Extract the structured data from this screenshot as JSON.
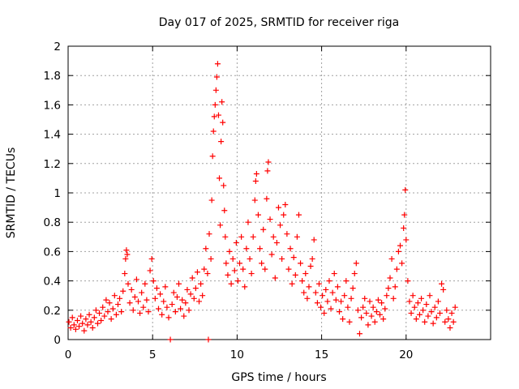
{
  "chart_data": {
    "type": "scatter",
    "title": "Day 017 of 2025, SRMTID for receiver riga",
    "xlabel": "GPS time / hours",
    "ylabel": "SRMTID / TECUs",
    "xlim": [
      0,
      25
    ],
    "ylim": [
      0,
      2
    ],
    "xticks": [
      0,
      5,
      10,
      15,
      20
    ],
    "xtick_labels": [
      "0",
      "5",
      "10",
      "15",
      "20"
    ],
    "yticks": [
      0,
      0.2,
      0.4,
      0.6,
      0.8,
      1,
      1.2,
      1.4,
      1.6,
      1.8,
      2
    ],
    "ytick_labels": [
      "0",
      "0.2",
      "0.4",
      "0.6",
      "0.8",
      "1",
      "1.2",
      "1.4",
      "1.6",
      "1.8",
      "2"
    ],
    "grid": true,
    "marker": "+",
    "series": [
      {
        "name": "SRMTID",
        "color": "#ff0000",
        "points": [
          [
            0.05,
            0.12
          ],
          [
            0.15,
            0.08
          ],
          [
            0.25,
            0.15
          ],
          [
            0.35,
            0.1
          ],
          [
            0.45,
            0.07
          ],
          [
            0.55,
            0.13
          ],
          [
            0.65,
            0.09
          ],
          [
            0.75,
            0.16
          ],
          [
            0.85,
            0.11
          ],
          [
            0.95,
            0.06
          ],
          [
            1.05,
            0.14
          ],
          [
            1.15,
            0.1
          ],
          [
            1.25,
            0.17
          ],
          [
            1.35,
            0.12
          ],
          [
            1.45,
            0.08
          ],
          [
            1.55,
            0.15
          ],
          [
            1.65,
            0.2
          ],
          [
            1.75,
            0.11
          ],
          [
            1.85,
            0.18
          ],
          [
            1.95,
            0.13
          ],
          [
            2.05,
            0.22
          ],
          [
            2.15,
            0.16
          ],
          [
            2.25,
            0.27
          ],
          [
            2.35,
            0.19
          ],
          [
            2.45,
            0.25
          ],
          [
            2.55,
            0.14
          ],
          [
            2.65,
            0.21
          ],
          [
            2.75,
            0.3
          ],
          [
            2.85,
            0.17
          ],
          [
            2.95,
            0.24
          ],
          [
            3.05,
            0.28
          ],
          [
            3.15,
            0.19
          ],
          [
            3.25,
            0.33
          ],
          [
            3.35,
            0.45
          ],
          [
            3.4,
            0.55
          ],
          [
            3.45,
            0.61
          ],
          [
            3.5,
            0.58
          ],
          [
            3.55,
            0.38
          ],
          [
            3.65,
            0.25
          ],
          [
            3.75,
            0.34
          ],
          [
            3.85,
            0.2
          ],
          [
            3.95,
            0.29
          ],
          [
            4.05,
            0.41
          ],
          [
            4.15,
            0.26
          ],
          [
            4.25,
            0.18
          ],
          [
            4.35,
            0.32
          ],
          [
            4.45,
            0.22
          ],
          [
            4.55,
            0.38
          ],
          [
            4.65,
            0.27
          ],
          [
            4.75,
            0.19
          ],
          [
            4.85,
            0.47
          ],
          [
            4.95,
            0.55
          ],
          [
            5.05,
            0.4
          ],
          [
            5.15,
            0.28
          ],
          [
            5.25,
            0.35
          ],
          [
            5.35,
            0.21
          ],
          [
            5.45,
            0.31
          ],
          [
            5.55,
            0.17
          ],
          [
            5.65,
            0.26
          ],
          [
            5.75,
            0.36
          ],
          [
            5.85,
            0.22
          ],
          [
            5.95,
            0.15
          ],
          [
            6.05,
            0.0
          ],
          [
            6.15,
            0.24
          ],
          [
            6.25,
            0.32
          ],
          [
            6.35,
            0.19
          ],
          [
            6.45,
            0.29
          ],
          [
            6.55,
            0.38
          ],
          [
            6.65,
            0.21
          ],
          [
            6.75,
            0.27
          ],
          [
            6.85,
            0.16
          ],
          [
            6.95,
            0.25
          ],
          [
            7.05,
            0.34
          ],
          [
            7.15,
            0.2
          ],
          [
            7.25,
            0.31
          ],
          [
            7.35,
            0.42
          ],
          [
            7.45,
            0.28
          ],
          [
            7.55,
            0.35
          ],
          [
            7.65,
            0.46
          ],
          [
            7.75,
            0.26
          ],
          [
            7.85,
            0.38
          ],
          [
            7.95,
            0.3
          ],
          [
            8.05,
            0.48
          ],
          [
            8.15,
            0.62
          ],
          [
            8.25,
            0.45
          ],
          [
            8.3,
            0.0
          ],
          [
            8.35,
            0.72
          ],
          [
            8.45,
            0.55
          ],
          [
            8.5,
            0.95
          ],
          [
            8.55,
            1.25
          ],
          [
            8.6,
            1.42
          ],
          [
            8.65,
            1.52
          ],
          [
            8.7,
            1.6
          ],
          [
            8.75,
            1.7
          ],
          [
            8.8,
            1.79
          ],
          [
            8.85,
            1.88
          ],
          [
            8.9,
            1.53
          ],
          [
            8.95,
            1.1
          ],
          [
            9.0,
            0.78
          ],
          [
            9.05,
            1.35
          ],
          [
            9.1,
            1.62
          ],
          [
            9.15,
            1.48
          ],
          [
            9.2,
            1.05
          ],
          [
            9.25,
            0.88
          ],
          [
            9.3,
            0.7
          ],
          [
            9.35,
            0.52
          ],
          [
            9.45,
            0.44
          ],
          [
            9.55,
            0.6
          ],
          [
            9.65,
            0.38
          ],
          [
            9.75,
            0.55
          ],
          [
            9.85,
            0.47
          ],
          [
            9.95,
            0.66
          ],
          [
            10.05,
            0.4
          ],
          [
            10.15,
            0.52
          ],
          [
            10.25,
            0.7
          ],
          [
            10.35,
            0.48
          ],
          [
            10.45,
            0.36
          ],
          [
            10.55,
            0.62
          ],
          [
            10.65,
            0.8
          ],
          [
            10.75,
            0.55
          ],
          [
            10.85,
            0.45
          ],
          [
            10.95,
            0.7
          ],
          [
            11.05,
            0.95
          ],
          [
            11.1,
            1.08
          ],
          [
            11.15,
            1.13
          ],
          [
            11.25,
            0.85
          ],
          [
            11.35,
            0.62
          ],
          [
            11.45,
            0.52
          ],
          [
            11.55,
            0.75
          ],
          [
            11.65,
            0.48
          ],
          [
            11.75,
            0.96
          ],
          [
            11.8,
            1.15
          ],
          [
            11.85,
            1.21
          ],
          [
            11.95,
            0.82
          ],
          [
            12.05,
            0.58
          ],
          [
            12.15,
            0.7
          ],
          [
            12.25,
            0.42
          ],
          [
            12.35,
            0.66
          ],
          [
            12.45,
            0.9
          ],
          [
            12.55,
            0.78
          ],
          [
            12.65,
            0.55
          ],
          [
            12.75,
            0.85
          ],
          [
            12.85,
            0.92
          ],
          [
            12.95,
            0.72
          ],
          [
            13.05,
            0.48
          ],
          [
            13.15,
            0.62
          ],
          [
            13.25,
            0.38
          ],
          [
            13.35,
            0.56
          ],
          [
            13.45,
            0.44
          ],
          [
            13.55,
            0.7
          ],
          [
            13.65,
            0.85
          ],
          [
            13.75,
            0.52
          ],
          [
            13.85,
            0.4
          ],
          [
            13.95,
            0.32
          ],
          [
            14.05,
            0.45
          ],
          [
            14.15,
            0.28
          ],
          [
            14.25,
            0.36
          ],
          [
            14.35,
            0.5
          ],
          [
            14.45,
            0.55
          ],
          [
            14.55,
            0.68
          ],
          [
            14.65,
            0.32
          ],
          [
            14.75,
            0.25
          ],
          [
            14.85,
            0.38
          ],
          [
            14.95,
            0.22
          ],
          [
            15.05,
            0.3
          ],
          [
            15.15,
            0.18
          ],
          [
            15.25,
            0.34
          ],
          [
            15.35,
            0.26
          ],
          [
            15.45,
            0.4
          ],
          [
            15.55,
            0.21
          ],
          [
            15.65,
            0.32
          ],
          [
            15.75,
            0.45
          ],
          [
            15.85,
            0.27
          ],
          [
            15.95,
            0.36
          ],
          [
            16.05,
            0.19
          ],
          [
            16.15,
            0.26
          ],
          [
            16.25,
            0.14
          ],
          [
            16.35,
            0.3
          ],
          [
            16.45,
            0.4
          ],
          [
            16.55,
            0.22
          ],
          [
            16.65,
            0.12
          ],
          [
            16.75,
            0.28
          ],
          [
            16.85,
            0.35
          ],
          [
            16.95,
            0.45
          ],
          [
            17.05,
            0.52
          ],
          [
            17.15,
            0.2
          ],
          [
            17.25,
            0.04
          ],
          [
            17.35,
            0.15
          ],
          [
            17.45,
            0.22
          ],
          [
            17.55,
            0.28
          ],
          [
            17.65,
            0.18
          ],
          [
            17.75,
            0.1
          ],
          [
            17.85,
            0.26
          ],
          [
            17.95,
            0.16
          ],
          [
            18.05,
            0.22
          ],
          [
            18.15,
            0.12
          ],
          [
            18.25,
            0.19
          ],
          [
            18.35,
            0.27
          ],
          [
            18.45,
            0.17
          ],
          [
            18.55,
            0.25
          ],
          [
            18.65,
            0.14
          ],
          [
            18.75,
            0.21
          ],
          [
            18.85,
            0.3
          ],
          [
            18.95,
            0.35
          ],
          [
            19.05,
            0.42
          ],
          [
            19.15,
            0.55
          ],
          [
            19.25,
            0.28
          ],
          [
            19.35,
            0.36
          ],
          [
            19.45,
            0.48
          ],
          [
            19.55,
            0.6
          ],
          [
            19.65,
            0.64
          ],
          [
            19.75,
            0.52
          ],
          [
            19.85,
            0.76
          ],
          [
            19.9,
            0.85
          ],
          [
            19.95,
            1.02
          ],
          [
            20.0,
            0.68
          ],
          [
            20.1,
            0.4
          ],
          [
            20.2,
            0.26
          ],
          [
            20.3,
            0.18
          ],
          [
            20.4,
            0.3
          ],
          [
            20.5,
            0.22
          ],
          [
            20.6,
            0.14
          ],
          [
            20.7,
            0.25
          ],
          [
            20.8,
            0.17
          ],
          [
            20.9,
            0.28
          ],
          [
            21.0,
            0.2
          ],
          [
            21.1,
            0.12
          ],
          [
            21.2,
            0.24
          ],
          [
            21.3,
            0.16
          ],
          [
            21.4,
            0.3
          ],
          [
            21.5,
            0.19
          ],
          [
            21.6,
            0.11
          ],
          [
            21.7,
            0.22
          ],
          [
            21.8,
            0.15
          ],
          [
            21.9,
            0.26
          ],
          [
            22.0,
            0.18
          ],
          [
            22.1,
            0.38
          ],
          [
            22.2,
            0.34
          ],
          [
            22.3,
            0.12
          ],
          [
            22.4,
            0.2
          ],
          [
            22.5,
            0.14
          ],
          [
            22.6,
            0.08
          ],
          [
            22.7,
            0.18
          ],
          [
            22.8,
            0.12
          ],
          [
            22.9,
            0.22
          ]
        ]
      }
    ]
  }
}
